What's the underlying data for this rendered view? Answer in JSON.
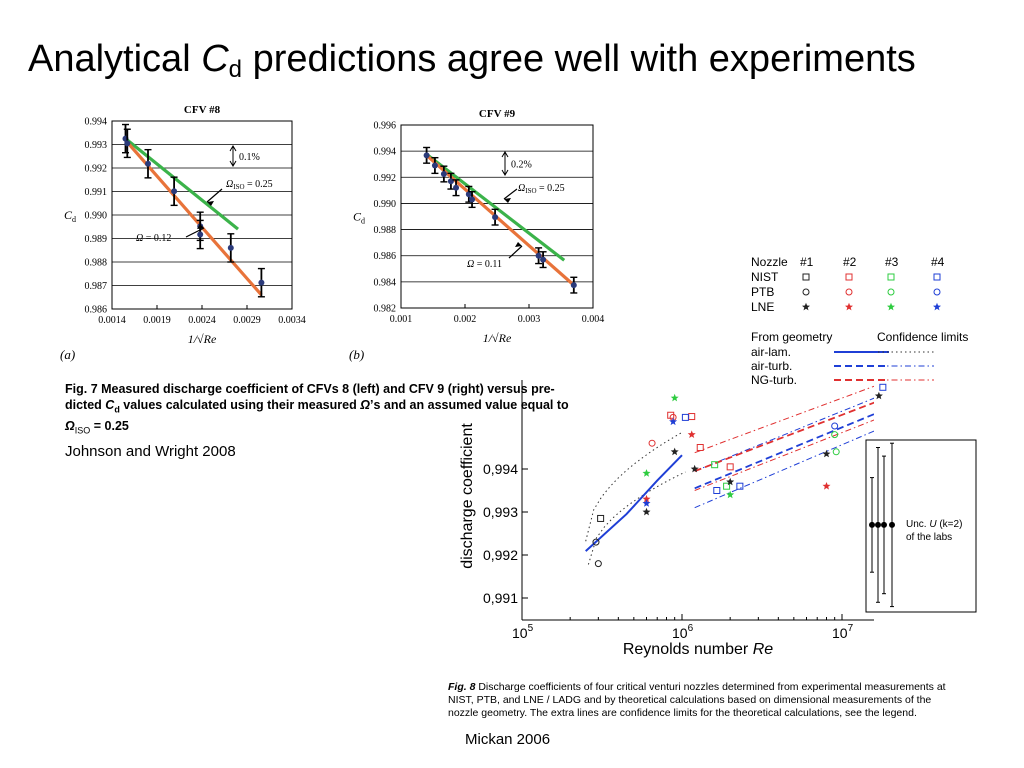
{
  "slide": {
    "title_pre": "Analytical ",
    "title_sym": "C",
    "title_sub": "d",
    "title_post": " predictions agree well with experiments",
    "citation_left": "Johnson and Wright 2008",
    "citation_right": "Mickan 2006"
  },
  "fig7": {
    "caption_line1": "Fig. 7   Measured discharge coefficient of CFVs 8 (left) and CFV 9 (right) versus pre-",
    "caption_line2a": "dicted ",
    "caption_cd": "C",
    "caption_cd_sub": "d",
    "caption_line2b": " values calculated using their measured ",
    "caption_omega": "Ω",
    "caption_line2c": "’s and an assumed value equal to",
    "caption_line3_omega": "Ω",
    "caption_line3_sub": "ISO",
    "caption_line3_val": " = 0.25",
    "panel_a": "(a)",
    "panel_b": "(b)"
  },
  "fig8": {
    "legend_nozzle": "Nozzle",
    "legend_cols": [
      "#1",
      "#2",
      "#3",
      "#4"
    ],
    "legend_rows": [
      "NIST",
      "PTB",
      "LNE"
    ],
    "legend_geometry": "From geometry",
    "legend_conf": "Confidence limits",
    "legend_lines": [
      "air-lam.",
      "air-turb.",
      "NG-turb."
    ],
    "unc_label_1": "Unc. ",
    "unc_label_U": "U",
    "unc_label_k": " (k=2)",
    "unc_label_2": "of the labs",
    "caption_fig": "Fig. 8",
    "caption_line1": "   Discharge coefficients of four critical venturi nozzles determined from experimental measurements at",
    "caption_line2": "NIST, PTB, and LNE / LADG and by theoretical calculations based on dimensional measurements of the",
    "caption_line3": "nozzle geometry. The extra lines are confidence limits for the theoretical calculations, see the legend."
  },
  "chart_data": [
    {
      "type": "scatter",
      "title": "CFV #8",
      "xlabel": "1/√Re",
      "ylabel": "Cd",
      "xlim": [
        0.0014,
        0.0034
      ],
      "ylim": [
        0.986,
        0.994
      ],
      "xticks": [
        "0.0014",
        "0.0019",
        "0.0024",
        "0.0029",
        "0.0034"
      ],
      "yticks": [
        "0.994",
        "0.993",
        "0.992",
        "0.991",
        "0.990",
        "0.989",
        "0.988",
        "0.987",
        "0.986"
      ],
      "points": [
        {
          "x": 0.00155,
          "y": 0.99325,
          "err": 0.0006
        },
        {
          "x": 0.00157,
          "y": 0.99305,
          "err": 0.0006
        },
        {
          "x": 0.0018,
          "y": 0.99218,
          "err": 0.0006
        },
        {
          "x": 0.00209,
          "y": 0.99101,
          "err": 0.0006
        },
        {
          "x": 0.00238,
          "y": 0.98952,
          "err": 0.0006
        },
        {
          "x": 0.00238,
          "y": 0.98917,
          "err": 0.0006
        },
        {
          "x": 0.00272,
          "y": 0.9886,
          "err": 0.0006
        },
        {
          "x": 0.00306,
          "y": 0.98712,
          "err": 0.0006
        }
      ],
      "series": [
        {
          "name": "ΩISO = 0.25",
          "color": "#3bb34a",
          "x": [
            0.00155,
            0.0028
          ],
          "y": [
            0.99325,
            0.9894
          ]
        },
        {
          "name": "Ω = 0.12",
          "color": "#e8733a",
          "x": [
            0.00155,
            0.00306
          ],
          "y": [
            0.99318,
            0.9866
          ]
        }
      ],
      "annotations": [
        "0.1%",
        "ΩISO = 0.25",
        "Ω = 0.12"
      ],
      "grid": "horizontal"
    },
    {
      "type": "scatter",
      "title": "CFV #9",
      "xlabel": "1/√Re",
      "ylabel": "Cd",
      "xlim": [
        0.001,
        0.004
      ],
      "ylim": [
        0.982,
        0.996
      ],
      "xticks": [
        "0.001",
        "0.002",
        "0.003",
        "0.004"
      ],
      "yticks": [
        "0.996",
        "0.994",
        "0.992",
        "0.990",
        "0.988",
        "0.986",
        "0.984",
        "0.982"
      ],
      "points": [
        {
          "x": 0.0014,
          "y": 0.99368,
          "err": 0.0006
        },
        {
          "x": 0.00153,
          "y": 0.9929,
          "err": 0.0006
        },
        {
          "x": 0.00167,
          "y": 0.99225,
          "err": 0.0006
        },
        {
          "x": 0.00178,
          "y": 0.9917,
          "err": 0.0006
        },
        {
          "x": 0.00186,
          "y": 0.9912,
          "err": 0.0006
        },
        {
          "x": 0.00206,
          "y": 0.9907,
          "err": 0.0006
        },
        {
          "x": 0.00211,
          "y": 0.9903,
          "err": 0.0006
        },
        {
          "x": 0.00247,
          "y": 0.98895,
          "err": 0.0006
        },
        {
          "x": 0.00315,
          "y": 0.986,
          "err": 0.0006
        },
        {
          "x": 0.00322,
          "y": 0.9857,
          "err": 0.0006
        },
        {
          "x": 0.0037,
          "y": 0.98375,
          "err": 0.0006
        }
      ],
      "series": [
        {
          "name": "ΩISO = 0.25",
          "color": "#3bb34a",
          "x": [
            0.0014,
            0.00355
          ],
          "y": [
            0.99376,
            0.98565
          ]
        },
        {
          "name": "Ω = 0.11",
          "color": "#e8733a",
          "x": [
            0.0014,
            0.0037
          ],
          "y": [
            0.99368,
            0.98375
          ]
        }
      ],
      "annotations": [
        "0.2%",
        "ΩISO = 0.25",
        "Ω = 0.11"
      ],
      "grid": "horizontal"
    },
    {
      "type": "scatter",
      "xlabel": "Reynolds number Re",
      "ylabel": "discharge coefficient",
      "xscale": "log",
      "xlim": [
        100000,
        20000000
      ],
      "ylim": [
        0.9905,
        0.9958
      ],
      "xticks": [
        "10^5",
        "10^6",
        "10^7"
      ],
      "yticks": [
        "0,994",
        "0,993",
        "0,992",
        "0,991"
      ],
      "lines": [
        {
          "name": "air-lam.",
          "style": "solid",
          "color": "#1f3fd6",
          "x": [
            250000,
            450000,
            700000,
            1000000
          ],
          "y": [
            0.99209,
            0.99295,
            0.99373,
            0.99432
          ]
        },
        {
          "name": "air-turb.",
          "style": "dashed",
          "color": "#1f3fd6",
          "x": [
            1200000,
            18000000
          ],
          "y": [
            0.99355,
            0.99536
          ]
        },
        {
          "name": "NG-turb.",
          "style": "dashed",
          "color": "#e03030",
          "x": [
            1200000,
            18000000
          ],
          "y": [
            0.99395,
            0.99562
          ]
        }
      ],
      "confidence_limits": [
        {
          "color": "#333",
          "x": [
            250000,
            1000000
          ],
          "y": [
            0.99232,
            0.99485
          ]
        },
        {
          "color": "#333",
          "x": [
            260000,
            1050000
          ],
          "y": [
            0.99178,
            0.99393
          ]
        },
        {
          "color": "#1f3fd6",
          "x": [
            1200000,
            18000000
          ],
          "y": [
            0.99395,
            0.99573
          ]
        },
        {
          "color": "#1f3fd6",
          "x": [
            1200000,
            18000000
          ],
          "y": [
            0.9931,
            0.99497
          ]
        },
        {
          "color": "#e03030",
          "x": [
            1200000,
            18000000
          ],
          "y": [
            0.99438,
            0.996
          ]
        },
        {
          "color": "#e03030",
          "x": [
            1200000,
            18000000
          ],
          "y": [
            0.9935,
            0.99522
          ]
        }
      ],
      "points": [
        {
          "lab": "NIST",
          "nozzle": 1,
          "x": 310000,
          "y": 0.99285
        },
        {
          "lab": "NIST",
          "nozzle": 2,
          "x": 850000,
          "y": 0.99525
        },
        {
          "lab": "NIST",
          "nozzle": 2,
          "x": 1150000,
          "y": 0.99522
        },
        {
          "lab": "NIST",
          "nozzle": 2,
          "x": 1300000,
          "y": 0.9945
        },
        {
          "lab": "NIST",
          "nozzle": 2,
          "x": 2000000,
          "y": 0.99405
        },
        {
          "lab": "NIST",
          "nozzle": 3,
          "x": 1600000,
          "y": 0.9941
        },
        {
          "lab": "NIST",
          "nozzle": 3,
          "x": 1900000,
          "y": 0.9936
        },
        {
          "lab": "NIST",
          "nozzle": 4,
          "x": 1050000,
          "y": 0.9952
        },
        {
          "lab": "NIST",
          "nozzle": 4,
          "x": 1650000,
          "y": 0.9935
        },
        {
          "lab": "NIST",
          "nozzle": 4,
          "x": 2300000,
          "y": 0.9936
        },
        {
          "lab": "NIST",
          "nozzle": 4,
          "x": 18000000,
          "y": 0.9959
        },
        {
          "lab": "PTB",
          "nozzle": 1,
          "x": 290000,
          "y": 0.9923
        },
        {
          "lab": "PTB",
          "nozzle": 1,
          "x": 300000,
          "y": 0.9918
        },
        {
          "lab": "PTB",
          "nozzle": 2,
          "x": 650000,
          "y": 0.9946
        },
        {
          "lab": "PTB",
          "nozzle": 2,
          "x": 880000,
          "y": 0.9952
        },
        {
          "lab": "PTB",
          "nozzle": 3,
          "x": 9000000,
          "y": 0.9948
        },
        {
          "lab": "PTB",
          "nozzle": 3,
          "x": 9200000,
          "y": 0.9944
        },
        {
          "lab": "PTB",
          "nozzle": 4,
          "x": 9000000,
          "y": 0.995
        },
        {
          "lab": "LNE",
          "nozzle": 1,
          "x": 600000,
          "y": 0.993
        },
        {
          "lab": "LNE",
          "nozzle": 1,
          "x": 900000,
          "y": 0.9944
        },
        {
          "lab": "LNE",
          "nozzle": 1,
          "x": 1200000,
          "y": 0.994
        },
        {
          "lab": "LNE",
          "nozzle": 1,
          "x": 2000000,
          "y": 0.9937
        },
        {
          "lab": "LNE",
          "nozzle": 1,
          "x": 8000000,
          "y": 0.99435
        },
        {
          "lab": "LNE",
          "nozzle": 1,
          "x": 17000000,
          "y": 0.9957
        },
        {
          "lab": "LNE",
          "nozzle": 2,
          "x": 600000,
          "y": 0.9933
        },
        {
          "lab": "LNE",
          "nozzle": 2,
          "x": 1150000,
          "y": 0.9948
        },
        {
          "lab": "LNE",
          "nozzle": 2,
          "x": 8000000,
          "y": 0.9936
        },
        {
          "lab": "LNE",
          "nozzle": 3,
          "x": 600000,
          "y": 0.9939
        },
        {
          "lab": "LNE",
          "nozzle": 3,
          "x": 900000,
          "y": 0.99565
        },
        {
          "lab": "LNE",
          "nozzle": 3,
          "x": 2000000,
          "y": 0.9934
        },
        {
          "lab": "LNE",
          "nozzle": 4,
          "x": 600000,
          "y": 0.9932
        },
        {
          "lab": "LNE",
          "nozzle": 4,
          "x": 880000,
          "y": 0.9951
        }
      ],
      "uncertainty": [
        {
          "x": 13000000,
          "y": 0.9927,
          "err": 0.0011
        },
        {
          "x": 15000000,
          "y": 0.9927,
          "err": 0.0018
        },
        {
          "x": 17000000,
          "y": 0.9927,
          "err": 0.0016
        },
        {
          "x": 19000000,
          "y": 0.9927,
          "err": 0.0019
        }
      ],
      "colors": {
        "NIST": "square",
        "PTB": "circle",
        "LNE": "star",
        "nozzle_1": "#222222",
        "nozzle_2": "#e03030",
        "nozzle_3": "#2ecc40",
        "nozzle_4": "#1f3fd6"
      }
    }
  ]
}
